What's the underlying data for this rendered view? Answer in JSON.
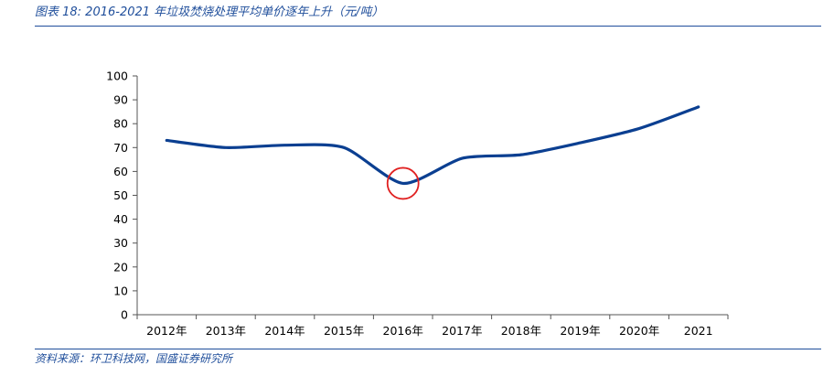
{
  "header": {
    "caption": "图表 18:  2016-2021 年垃圾焚烧处理平均单价逐年上升（元/吨）"
  },
  "footer": {
    "source": "资料来源：环卫科技网，国盛证券研究所"
  },
  "colors": {
    "accent": "#1f4e9b",
    "line": "#0b3f91",
    "highlight": "#e02020"
  },
  "chart_data": {
    "type": "line",
    "categories": [
      "2012年",
      "2013年",
      "2014年",
      "2015年",
      "2016年",
      "2017年",
      "2018年",
      "2019年",
      "2020年",
      "2021"
    ],
    "series": [
      {
        "values": [
          73,
          70,
          71,
          70,
          55,
          65.5,
          67,
          72,
          78,
          87
        ]
      }
    ],
    "ylim": [
      0,
      100
    ],
    "yticks": [
      0,
      10,
      20,
      30,
      40,
      50,
      60,
      70,
      80,
      90,
      100
    ],
    "grid": false,
    "legend": "none",
    "annotations": [
      {
        "type": "circle",
        "category": "2016年",
        "value": 55
      }
    ]
  }
}
